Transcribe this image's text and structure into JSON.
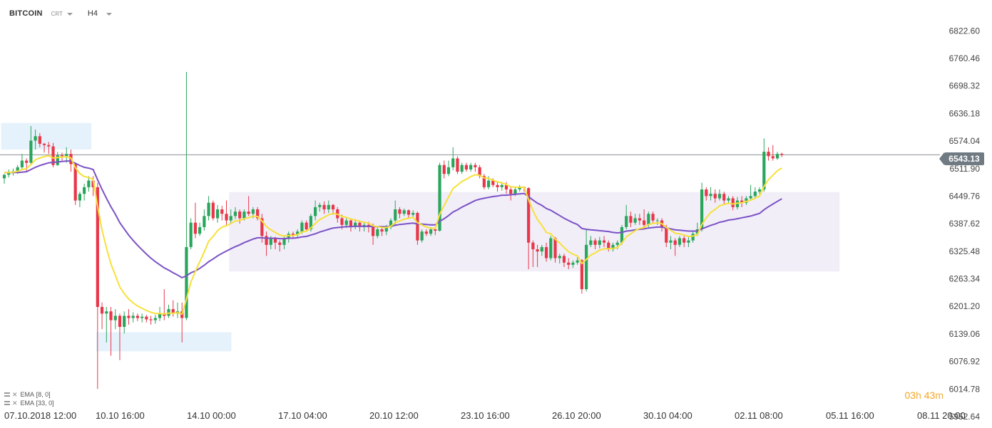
{
  "header": {
    "symbol": "BITCOIN",
    "symbol_sub": "CRT",
    "timeframe": "H4"
  },
  "legend": [
    {
      "label": "EMA",
      "params": "[8, 0]"
    },
    {
      "label": "EMA",
      "params": "[33, 0]"
    }
  ],
  "timer": {
    "hours": "03",
    "h": "h",
    "minutes": "43",
    "m": "m"
  },
  "current_price": "6543.13",
  "colors": {
    "up": "#2aa55c",
    "down": "#e8374a",
    "ema_fast": "#f7e03a",
    "ema_slow": "#7b52c6",
    "zone_blue": "#dceefa",
    "zone_purple": "#ece8f5",
    "price_line": "#8a9199"
  },
  "chart_data": {
    "type": "candlestick",
    "y_ticks": [
      "6822.60",
      "6760.46",
      "6698.32",
      "6636.18",
      "6574.04",
      "6511.90",
      "6449.76",
      "6387.62",
      "6325.48",
      "6263.34",
      "6201.20",
      "6139.06",
      "6076.92",
      "6014.78",
      "5952.64"
    ],
    "x_ticks": [
      "07.10.2018  12:00",
      "10.10  16:00",
      "14.10  00:00",
      "17.10  04:00",
      "20.10  12:00",
      "23.10  16:00",
      "26.10  20:00",
      "30.10  04:00",
      "02.11  08:00",
      "05.11  16:00",
      "08.11  20:00"
    ],
    "ylim": [
      5952.64,
      6853.67
    ],
    "last_price": 6543.13,
    "candles": [
      [
        6490,
        6498,
        6478,
        6500
      ],
      [
        6498,
        6504,
        6492,
        6510
      ],
      [
        6504,
        6506,
        6496,
        6512
      ],
      [
        6506,
        6515,
        6500,
        6520
      ],
      [
        6515,
        6530,
        6508,
        6545
      ],
      [
        6530,
        6525,
        6505,
        6535
      ],
      [
        6525,
        6575,
        6520,
        6608
      ],
      [
        6575,
        6585,
        6555,
        6600
      ],
      [
        6585,
        6568,
        6560,
        6592
      ],
      [
        6568,
        6565,
        6548,
        6570
      ],
      [
        6565,
        6562,
        6545,
        6572
      ],
      [
        6562,
        6520,
        6515,
        6570
      ],
      [
        6520,
        6542,
        6518,
        6550
      ],
      [
        6542,
        6540,
        6530,
        6548
      ],
      [
        6540,
        6545,
        6525,
        6560
      ],
      [
        6545,
        6522,
        6505,
        6555
      ],
      [
        6522,
        6440,
        6430,
        6525
      ],
      [
        6440,
        6455,
        6425,
        6460
      ],
      [
        6455,
        6470,
        6440,
        6478
      ],
      [
        6470,
        6485,
        6460,
        6495
      ],
      [
        6485,
        6470,
        6450,
        6495
      ],
      [
        6470,
        6200,
        6015,
        6480
      ],
      [
        6200,
        6185,
        6150,
        6210
      ],
      [
        6185,
        6190,
        6120,
        6200
      ],
      [
        6190,
        6170,
        6090,
        6200
      ],
      [
        6170,
        6180,
        6150,
        6195
      ],
      [
        6180,
        6155,
        6080,
        6185
      ],
      [
        6155,
        6180,
        6140,
        6190
      ],
      [
        6180,
        6175,
        6160,
        6195
      ],
      [
        6175,
        6180,
        6165,
        6188
      ],
      [
        6180,
        6175,
        6168,
        6185
      ],
      [
        6175,
        6178,
        6165,
        6185
      ],
      [
        6178,
        6172,
        6165,
        6182
      ],
      [
        6172,
        6170,
        6160,
        6180
      ],
      [
        6170,
        6175,
        6162,
        6182
      ],
      [
        6175,
        6185,
        6168,
        6200
      ],
      [
        6185,
        6180,
        6170,
        6240
      ],
      [
        6180,
        6195,
        6175,
        6205
      ],
      [
        6195,
        6185,
        6178,
        6215
      ],
      [
        6185,
        6190,
        6175,
        6210
      ],
      [
        6190,
        6175,
        6120,
        6210
      ],
      [
        6175,
        6335,
        6170,
        6730
      ],
      [
        6335,
        6390,
        6330,
        6400
      ],
      [
        6390,
        6365,
        6355,
        6435
      ],
      [
        6365,
        6380,
        6360,
        6390
      ],
      [
        6380,
        6405,
        6372,
        6420
      ],
      [
        6405,
        6435,
        6395,
        6450
      ],
      [
        6435,
        6400,
        6395,
        6440
      ],
      [
        6400,
        6420,
        6390,
        6430
      ],
      [
        6420,
        6410,
        6395,
        6428
      ],
      [
        6410,
        6395,
        6385,
        6440
      ],
      [
        6395,
        6405,
        6388,
        6420
      ],
      [
        6405,
        6415,
        6398,
        6425
      ],
      [
        6415,
        6400,
        6388,
        6420
      ],
      [
        6400,
        6415,
        6395,
        6420
      ],
      [
        6415,
        6410,
        6405,
        6450
      ],
      [
        6410,
        6420,
        6400,
        6425
      ],
      [
        6420,
        6400,
        6395,
        6425
      ],
      [
        6400,
        6360,
        6345,
        6410
      ],
      [
        6360,
        6340,
        6315,
        6370
      ],
      [
        6340,
        6355,
        6330,
        6360
      ],
      [
        6355,
        6345,
        6330,
        6358
      ],
      [
        6345,
        6340,
        6325,
        6350
      ],
      [
        6340,
        6355,
        6330,
        6360
      ],
      [
        6355,
        6365,
        6345,
        6370
      ],
      [
        6365,
        6362,
        6355,
        6370
      ],
      [
        6362,
        6370,
        6355,
        6375
      ],
      [
        6370,
        6390,
        6365,
        6395
      ],
      [
        6390,
        6375,
        6370,
        6395
      ],
      [
        6375,
        6405,
        6370,
        6410
      ],
      [
        6405,
        6425,
        6395,
        6440
      ],
      [
        6425,
        6430,
        6415,
        6435
      ],
      [
        6430,
        6420,
        6410,
        6438
      ],
      [
        6420,
        6430,
        6412,
        6440
      ],
      [
        6430,
        6420,
        6408,
        6432
      ],
      [
        6420,
        6400,
        6390,
        6425
      ],
      [
        6400,
        6385,
        6375,
        6408
      ],
      [
        6385,
        6395,
        6378,
        6400
      ],
      [
        6395,
        6380,
        6370,
        6400
      ],
      [
        6380,
        6390,
        6375,
        6398
      ],
      [
        6390,
        6380,
        6370,
        6395
      ],
      [
        6380,
        6385,
        6370,
        6390
      ],
      [
        6385,
        6380,
        6368,
        6392
      ],
      [
        6380,
        6360,
        6340,
        6388
      ],
      [
        6360,
        6375,
        6355,
        6380
      ],
      [
        6375,
        6370,
        6360,
        6380
      ],
      [
        6370,
        6380,
        6362,
        6385
      ],
      [
        6380,
        6395,
        6375,
        6400
      ],
      [
        6395,
        6420,
        6385,
        6440
      ],
      [
        6420,
        6410,
        6400,
        6425
      ],
      [
        6410,
        6418,
        6405,
        6422
      ],
      [
        6418,
        6408,
        6400,
        6420
      ],
      [
        6408,
        6412,
        6402,
        6418
      ],
      [
        6412,
        6350,
        6340,
        6415
      ],
      [
        6350,
        6370,
        6345,
        6375
      ],
      [
        6370,
        6365,
        6360,
        6375
      ],
      [
        6365,
        6375,
        6360,
        6380
      ],
      [
        6375,
        6372,
        6362,
        6380
      ],
      [
        6372,
        6520,
        6370,
        6525
      ],
      [
        6520,
        6500,
        6490,
        6530
      ],
      [
        6500,
        6515,
        6495,
        6530
      ],
      [
        6515,
        6535,
        6508,
        6560
      ],
      [
        6535,
        6505,
        6500,
        6540
      ],
      [
        6505,
        6520,
        6500,
        6525
      ],
      [
        6520,
        6510,
        6505,
        6525
      ],
      [
        6510,
        6520,
        6505,
        6525
      ],
      [
        6520,
        6515,
        6505,
        6525
      ],
      [
        6515,
        6495,
        6490,
        6520
      ],
      [
        6495,
        6470,
        6465,
        6500
      ],
      [
        6470,
        6485,
        6465,
        6495
      ],
      [
        6485,
        6475,
        6470,
        6490
      ],
      [
        6475,
        6470,
        6460,
        6482
      ],
      [
        6470,
        6475,
        6462,
        6480
      ],
      [
        6475,
        6465,
        6455,
        6482
      ],
      [
        6465,
        6455,
        6440,
        6470
      ],
      [
        6455,
        6465,
        6450,
        6470
      ],
      [
        6465,
        6470,
        6460,
        6475
      ],
      [
        6470,
        6468,
        6460,
        6472
      ],
      [
        6468,
        6345,
        6285,
        6470
      ],
      [
        6345,
        6330,
        6290,
        6350
      ],
      [
        6330,
        6325,
        6290,
        6340
      ],
      [
        6325,
        6335,
        6315,
        6340
      ],
      [
        6335,
        6310,
        6302,
        6345
      ],
      [
        6310,
        6355,
        6305,
        6360
      ],
      [
        6355,
        6310,
        6300,
        6358
      ],
      [
        6310,
        6315,
        6298,
        6320
      ],
      [
        6315,
        6300,
        6290,
        6320
      ],
      [
        6300,
        6295,
        6285,
        6310
      ],
      [
        6295,
        6300,
        6288,
        6305
      ],
      [
        6300,
        6305,
        6295,
        6312
      ],
      [
        6305,
        6240,
        6230,
        6308
      ],
      [
        6240,
        6340,
        6235,
        6375
      ],
      [
        6340,
        6350,
        6335,
        6360
      ],
      [
        6350,
        6340,
        6330,
        6355
      ],
      [
        6340,
        6350,
        6332,
        6358
      ],
      [
        6350,
        6345,
        6335,
        6360
      ],
      [
        6345,
        6330,
        6325,
        6350
      ],
      [
        6330,
        6340,
        6325,
        6345
      ],
      [
        6340,
        6345,
        6330,
        6350
      ],
      [
        6345,
        6380,
        6340,
        6385
      ],
      [
        6380,
        6405,
        6375,
        6430
      ],
      [
        6405,
        6390,
        6380,
        6415
      ],
      [
        6390,
        6400,
        6385,
        6410
      ],
      [
        6400,
        6395,
        6385,
        6410
      ],
      [
        6395,
        6385,
        6375,
        6420
      ],
      [
        6385,
        6410,
        6380,
        6415
      ],
      [
        6410,
        6395,
        6390,
        6415
      ],
      [
        6395,
        6395,
        6385,
        6400
      ],
      [
        6395,
        6380,
        6370,
        6400
      ],
      [
        6380,
        6345,
        6335,
        6385
      ],
      [
        6345,
        6350,
        6330,
        6360
      ],
      [
        6350,
        6340,
        6315,
        6355
      ],
      [
        6340,
        6355,
        6335,
        6360
      ],
      [
        6355,
        6345,
        6335,
        6360
      ],
      [
        6345,
        6350,
        6335,
        6360
      ],
      [
        6350,
        6365,
        6345,
        6370
      ],
      [
        6365,
        6375,
        6360,
        6390
      ],
      [
        6375,
        6465,
        6370,
        6480
      ],
      [
        6465,
        6450,
        6440,
        6470
      ],
      [
        6450,
        6455,
        6440,
        6470
      ],
      [
        6455,
        6445,
        6435,
        6465
      ],
      [
        6445,
        6455,
        6440,
        6465
      ],
      [
        6455,
        6440,
        6430,
        6460
      ],
      [
        6440,
        6445,
        6432,
        6450
      ],
      [
        6445,
        6425,
        6418,
        6450
      ],
      [
        6425,
        6440,
        6420,
        6448
      ],
      [
        6440,
        6435,
        6425,
        6450
      ],
      [
        6435,
        6445,
        6430,
        6450
      ],
      [
        6445,
        6450,
        6440,
        6475
      ],
      [
        6450,
        6460,
        6445,
        6470
      ],
      [
        6460,
        6465,
        6455,
        6470
      ],
      [
        6465,
        6550,
        6460,
        6580
      ],
      [
        6550,
        6540,
        6530,
        6560
      ],
      [
        6540,
        6535,
        6530,
        6565
      ],
      [
        6535,
        6545,
        6532,
        6550
      ],
      [
        6545,
        6543,
        6538,
        6548
      ]
    ],
    "ema_fast": [
      6503,
      6503,
      6504,
      6506,
      6510,
      6512,
      6521,
      6532,
      6536,
      6539,
      6541,
      6536,
      6537,
      6538,
      6539,
      6536,
      6514,
      6501,
      6494,
      6492,
      6488,
      6427,
      6373,
      6333,
      6297,
      6271,
      6245,
      6230,
      6218,
      6209,
      6202,
      6197,
      6192,
      6188,
      6185,
      6185,
      6184,
      6186,
      6186,
      6187,
      6184,
      6217,
      6256,
      6280,
      6302,
      6324,
      6348,
      6359,
      6372,
      6380,
      6383,
      6388,
      6394,
      6395,
      6399,
      6401,
      6405,
      6404,
      6394,
      6381,
      6374,
      6368,
      6362,
      6360,
      6361,
      6361,
      6363,
      6369,
      6371,
      6378,
      6388,
      6397,
      6402,
      6408,
      6411,
      6409,
      6404,
      6402,
      6398,
      6396,
      6393,
      6391,
      6389,
      6383,
      6381,
      6379,
      6379,
      6382,
      6390,
      6394,
      6398,
      6400,
      6402,
      6390,
      6385,
      6380,
      6378,
      6377,
      6409,
      6429,
      6448,
      6467,
      6475,
      6483,
      6488,
      6494,
      6498,
      6497,
      6491,
      6490,
      6486,
      6482,
      6480,
      6476,
      6471,
      6470,
      6470,
      6470,
      6442,
      6417,
      6397,
      6384,
      6368,
      6365,
      6353,
      6344,
      6334,
      6325,
      6319,
      6315,
      6298,
      6307,
      6317,
      6322,
      6328,
      6331,
      6331,
      6332,
      6334,
      6344,
      6358,
      6365,
      6372,
      6377,
      6379,
      6386,
      6388,
      6390,
      6388,
      6379,
      6373,
      6366,
      6365,
      6362,
      6359,
      6360,
      6363,
      6386,
      6401,
      6413,
      6420,
      6428,
      6431,
      6434,
      6432,
      6434,
      6435,
      6438,
      6441,
      6445,
      6450,
      6472,
      6487,
      6497,
      6507,
      6513
    ],
    "ema_slow": [
      6503,
      6503,
      6503,
      6503,
      6504,
      6505,
      6510,
      6515,
      6519,
      6522,
      6525,
      6526,
      6527,
      6528,
      6529,
      6529,
      6524,
      6519,
      6515,
      6513,
      6510,
      6487,
      6465,
      6445,
      6426,
      6409,
      6390,
      6376,
      6362,
      6350,
      6339,
      6329,
      6319,
      6310,
      6302,
      6295,
      6288,
      6283,
      6277,
      6272,
      6266,
      6270,
      6277,
      6281,
      6287,
      6294,
      6302,
      6308,
      6315,
      6321,
      6326,
      6331,
      6336,
      6340,
      6345,
      6349,
      6353,
      6356,
      6356,
      6355,
      6355,
      6355,
      6354,
      6354,
      6355,
      6355,
      6356,
      6358,
      6359,
      6362,
      6365,
      6369,
      6372,
      6375,
      6378,
      6379,
      6380,
      6381,
      6381,
      6382,
      6382,
      6382,
      6382,
      6381,
      6381,
      6381,
      6381,
      6382,
      6384,
      6386,
      6387,
      6388,
      6389,
      6387,
      6387,
      6386,
      6385,
      6385,
      6393,
      6399,
      6406,
      6414,
      6419,
      6425,
      6430,
      6435,
      6440,
      6443,
      6445,
      6447,
      6449,
      6450,
      6452,
      6452,
      6453,
      6454,
      6455,
      6456,
      6449,
      6441,
      6434,
      6429,
      6422,
      6418,
      6412,
      6406,
      6400,
      6395,
      6390,
      6386,
      6377,
      6375,
      6374,
      6373,
      6372,
      6371,
      6370,
      6368,
      6367,
      6368,
      6371,
      6372,
      6374,
      6375,
      6376,
      6378,
      6379,
      6380,
      6380,
      6378,
      6376,
      6374,
      6373,
      6372,
      6371,
      6371,
      6371,
      6376,
      6380,
      6384,
      6387,
      6391,
      6393,
      6396,
      6397,
      6399,
      6401,
      6403,
      6405,
      6408,
      6411,
      6419,
      6426,
      6432,
      6438,
      6444
    ]
  }
}
